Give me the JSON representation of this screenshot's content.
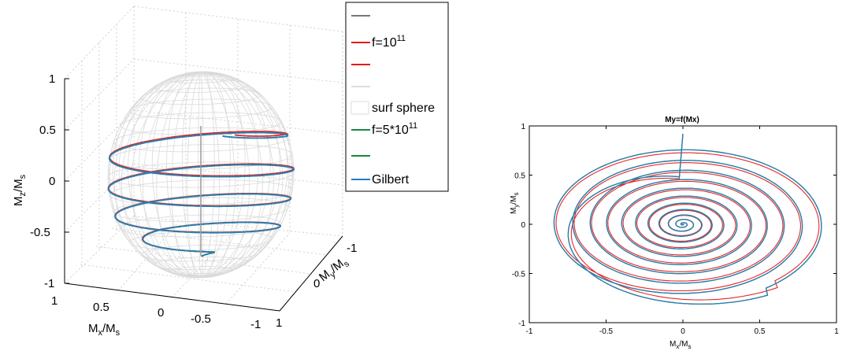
{
  "chart_data": [
    {
      "type": "line",
      "projection": "3d",
      "title": "",
      "xlabel": {
        "main": "M",
        "sub": "x",
        "mid": "/M",
        "sub2": "s"
      },
      "ylabel": {
        "main": "M",
        "sub": "y",
        "mid": "/M",
        "sub2": "s"
      },
      "zlabel": {
        "main": "M",
        "sub": "z",
        "mid": "/M",
        "sub2": "s"
      },
      "xlim": [
        -1,
        1
      ],
      "ylim": [
        -1,
        1
      ],
      "zlim": [
        -1,
        1
      ],
      "x_ticks": [
        "1",
        "0.5",
        "0",
        "-0.5",
        "-1"
      ],
      "y_ticks": [
        "-1",
        "0",
        "1"
      ],
      "z_ticks": [
        "1",
        "0.5",
        "0",
        "-0.5",
        "-1"
      ],
      "grid": true,
      "legend": {
        "placement": "top-right",
        "entries": [
          {
            "text": "",
            "color": "#777777",
            "kind": "line"
          },
          {
            "text": "f=10",
            "sup": "11",
            "color": "#e41a1c",
            "kind": "line"
          },
          {
            "text": "",
            "color": "#e41a1c",
            "kind": "line"
          },
          {
            "text": "",
            "color": "#dddddd",
            "kind": "line"
          },
          {
            "text": "surf sphere",
            "color": "#cccccc",
            "kind": "patch"
          },
          {
            "text": "f=5*10",
            "sup": "11",
            "color": "#1a8a3a",
            "kind": "line"
          },
          {
            "text": "",
            "color": "#1a8a3a",
            "kind": "line"
          },
          {
            "text": "Gilbert",
            "color": "#2b7bb9",
            "kind": "line"
          }
        ]
      },
      "series": [
        {
          "color": "#e41a1c",
          "turns": 4.3,
          "z_start": 0.45,
          "z_end": -0.8,
          "phase_shift": 0.22
        },
        {
          "color": "#1a8a3a",
          "turns": 4.3,
          "z_start": 0.45,
          "z_end": -0.8,
          "phase_shift": 0.0
        },
        {
          "color": "#2b7bb9",
          "turns": 4.3,
          "z_start": 0.45,
          "z_end": -0.8,
          "phase_shift": 0.0
        }
      ]
    },
    {
      "type": "line",
      "title": "My=f(Mx)",
      "xlabel": {
        "main": "M",
        "sub": "x",
        "mid": "/M",
        "sub2": "s"
      },
      "ylabel": {
        "main": "M",
        "sub": "y",
        "mid": "/M",
        "sub2": "s"
      },
      "xlim": [
        -1,
        1
      ],
      "ylim": [
        -1,
        1
      ],
      "x_ticks": [
        -1,
        -0.5,
        0,
        0.5,
        1
      ],
      "y_ticks": [
        1,
        0.5,
        0,
        -0.5,
        -1
      ],
      "x_tick_labels": [
        "-1",
        "-0.5",
        "0",
        "0.5",
        "1"
      ],
      "y_tick_labels": [
        "1",
        "0.5",
        "0",
        "-0.5",
        "-1"
      ],
      "grid": false,
      "series": [
        {
          "color": "#e41a1c",
          "start": [
            0.0,
            0.92
          ],
          "r_outer": 0.98,
          "turns": 12,
          "scale_x": 1.0,
          "scale_y": 0.85,
          "phase_shift": 0.25
        },
        {
          "color": "#1a8a3a",
          "start": [
            0.0,
            0.92
          ],
          "r_outer": 1.0,
          "turns": 12,
          "scale_x": 1.0,
          "scale_y": 0.87,
          "phase_shift": 0.0
        },
        {
          "color": "#2b7bb9",
          "start": [
            0.0,
            0.92
          ],
          "r_outer": 1.0,
          "turns": 12,
          "scale_x": 1.0,
          "scale_y": 0.87,
          "phase_shift": 0.0
        }
      ]
    }
  ]
}
